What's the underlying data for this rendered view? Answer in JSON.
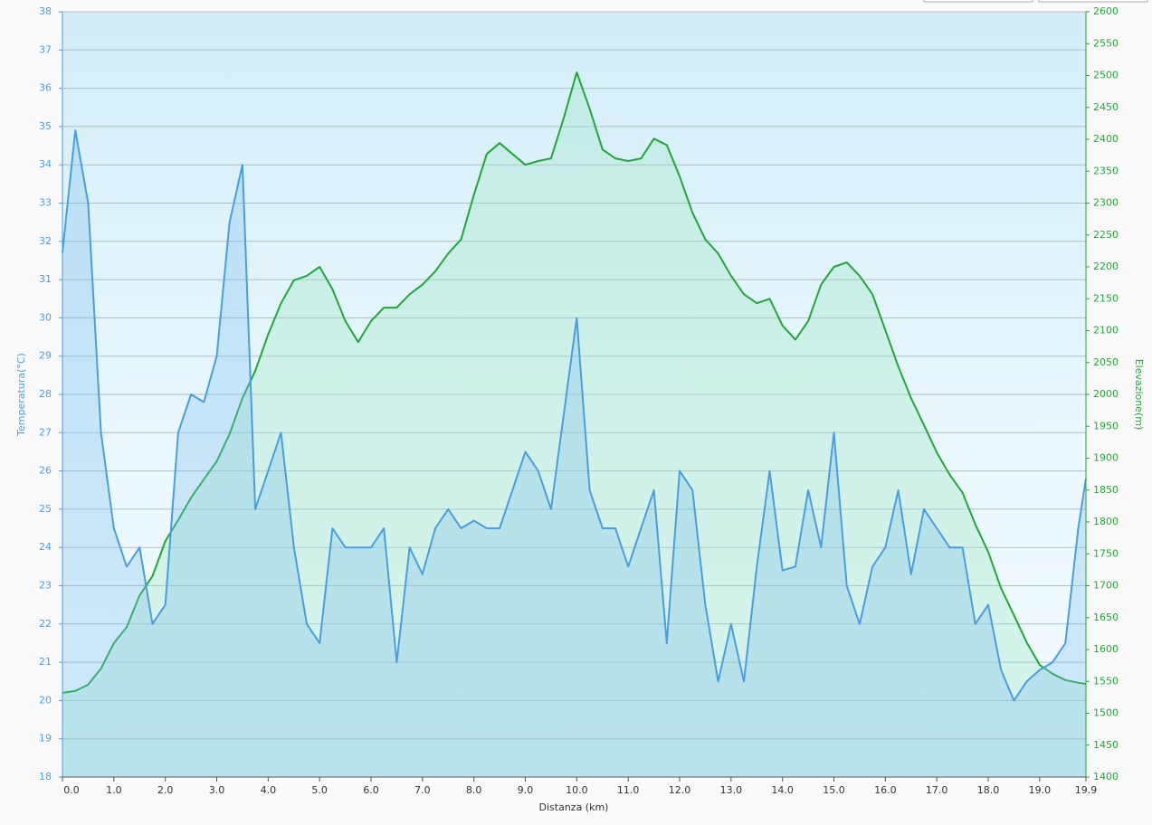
{
  "chart_data": {
    "type": "line",
    "xlabel": "Distanza  (km)",
    "ylabel": "Temperatura(°C)",
    "y2label": "Elevazione(m)",
    "x": [
      0,
      0.25,
      0.5,
      0.75,
      1,
      1.25,
      1.5,
      1.75,
      2,
      2.25,
      2.5,
      2.75,
      3,
      3.25,
      3.5,
      3.75,
      4,
      4.25,
      4.5,
      4.75,
      5,
      5.25,
      5.5,
      5.75,
      6,
      6.25,
      6.5,
      6.75,
      7,
      7.25,
      7.5,
      7.75,
      8,
      8.25,
      8.5,
      8.75,
      9,
      9.25,
      9.5,
      9.75,
      10,
      10.25,
      10.5,
      10.75,
      11,
      11.25,
      11.5,
      11.75,
      12,
      12.25,
      12.5,
      12.75,
      13,
      13.25,
      13.5,
      13.75,
      14,
      14.25,
      14.5,
      14.75,
      15,
      15.25,
      15.5,
      15.75,
      16,
      16.25,
      16.5,
      16.75,
      17,
      17.25,
      17.5,
      17.75,
      18,
      18.25,
      18.5,
      18.75,
      19,
      19.25,
      19.5,
      19.75,
      19.9
    ],
    "series": [
      {
        "color": "#4a9ee0",
        "values": [
          31.7,
          34.9,
          33,
          27,
          24.5,
          23.5,
          24,
          22,
          22.5,
          27,
          28,
          27.8,
          29,
          32.5,
          34,
          25,
          26,
          27,
          24,
          22,
          21.5,
          24.5,
          24,
          24,
          24,
          24.5,
          21,
          24,
          23.3,
          24.5,
          25,
          24.5,
          24.7,
          24.5,
          24.5,
          25.5,
          26.5,
          26,
          25,
          27.5,
          30,
          25.5,
          24.5,
          24.5,
          23.5,
          24.5,
          25.5,
          21.5,
          26,
          25.5,
          22.5,
          20.5,
          22,
          20.5,
          23.5,
          26,
          23.4,
          23.5,
          25.5,
          24,
          27,
          23,
          22,
          23.5,
          24,
          25.5,
          23.3,
          25,
          24.5,
          24,
          24,
          22,
          22.5,
          20.8,
          20,
          20.5,
          20.8,
          21,
          21.5,
          24.5,
          25.8
        ]
      },
      {
        "color": "#22a63a",
        "axis": "y2",
        "values": [
          1532,
          1535,
          1545,
          1570,
          1610,
          1635,
          1685,
          1715,
          1770,
          1803,
          1838,
          1867,
          1895,
          1938,
          1994,
          2037,
          2094,
          2143,
          2179,
          2186,
          2200,
          2165,
          2115,
          2082,
          2115,
          2136,
          2136,
          2157,
          2172,
          2193,
          2221,
          2243,
          2313,
          2377,
          2394,
          2377,
          2360,
          2366,
          2370,
          2434,
          2505,
          2448,
          2384,
          2370,
          2366,
          2370,
          2401,
          2391,
          2342,
          2285,
          2243,
          2221,
          2186,
          2157,
          2143,
          2150,
          2108,
          2086,
          2115,
          2172,
          2200,
          2207,
          2186,
          2157,
          2101,
          2044,
          1994,
          1952,
          1909,
          1874,
          1846,
          1796,
          1753,
          1696,
          1654,
          1611,
          1576,
          1562,
          1552,
          1548,
          1546
        ]
      }
    ],
    "xlim": [
      0,
      19.9
    ],
    "xticks": [
      {
        "value": 0,
        "label": "0.0"
      },
      {
        "value": 1,
        "label": "1.0"
      },
      {
        "value": 2,
        "label": "2.0"
      },
      {
        "value": 3,
        "label": "3.0"
      },
      {
        "value": 4,
        "label": "4.0"
      },
      {
        "value": 5,
        "label": "5.0"
      },
      {
        "value": 6,
        "label": "6.0"
      },
      {
        "value": 7,
        "label": "7.0"
      },
      {
        "value": 8,
        "label": "8.0"
      },
      {
        "value": 9,
        "label": "9.0"
      },
      {
        "value": 10,
        "label": "10.0"
      },
      {
        "value": 11,
        "label": "11.0"
      },
      {
        "value": 12,
        "label": "12.0"
      },
      {
        "value": 13,
        "label": "13.0"
      },
      {
        "value": 14,
        "label": "14.0"
      },
      {
        "value": 15,
        "label": "15.0"
      },
      {
        "value": 16,
        "label": "16.0"
      },
      {
        "value": 17,
        "label": "17.0"
      },
      {
        "value": 18,
        "label": "18.0"
      },
      {
        "value": 19,
        "label": "19.0"
      },
      19.9
    ],
    "ylim": [
      18,
      38
    ],
    "yticks": [
      18,
      19,
      20,
      21,
      22,
      23,
      24,
      25,
      26,
      27,
      28,
      29,
      30,
      31,
      32,
      33,
      34,
      35,
      36,
      37,
      38
    ],
    "y2lim": [
      1400,
      2600
    ],
    "y2ticks": [
      1400,
      1450,
      1500,
      1550,
      1600,
      1650,
      1700,
      1750,
      1800,
      1850,
      1900,
      1950,
      2000,
      2050,
      2100,
      2150,
      2200,
      2250,
      2300,
      2350,
      2400,
      2450,
      2500,
      2550,
      2600
    ],
    "grid": true
  }
}
